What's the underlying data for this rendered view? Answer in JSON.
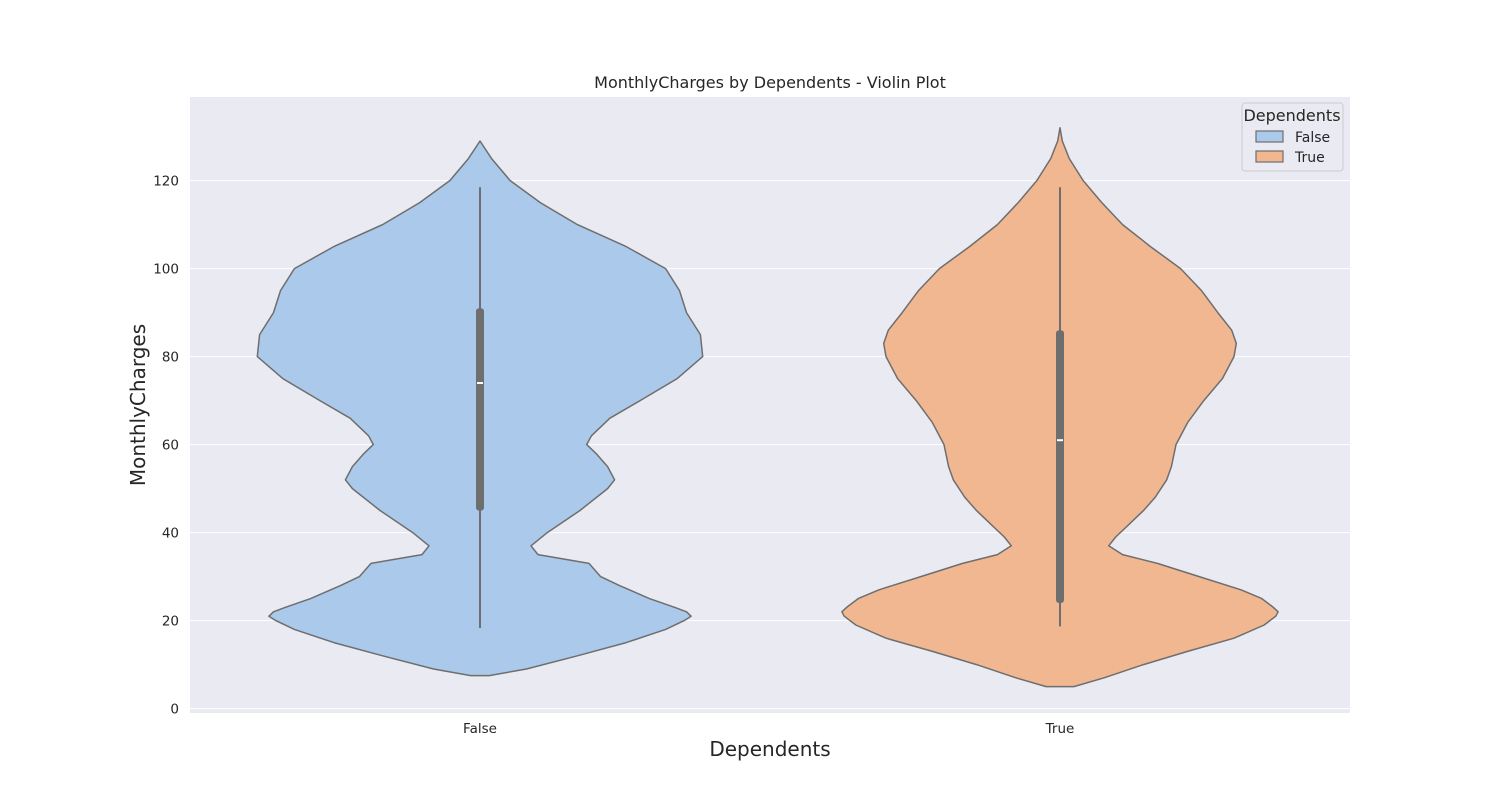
{
  "chart_data": {
    "type": "violin",
    "title": "MonthlyCharges by Dependents - Violin Plot",
    "xlabel": "Dependents",
    "ylabel": "MonthlyCharges",
    "ylim": [
      -1,
      139
    ],
    "yticks": [
      0,
      20,
      40,
      60,
      80,
      100,
      120
    ],
    "grid": true,
    "legend": {
      "title": "Dependents",
      "position": "top-right"
    },
    "categories": [
      "False",
      "True"
    ],
    "series": [
      {
        "name": "False",
        "color": "#abc9ea",
        "box": {
          "min": 18.3,
          "q1": 45,
          "median": 74,
          "q3": 91,
          "max": 118.5
        },
        "extent": [
          7.5,
          129
        ],
        "density": [
          [
            7.5,
            0.04
          ],
          [
            9,
            0.2
          ],
          [
            12,
            0.42
          ],
          [
            15,
            0.63
          ],
          [
            18,
            0.8
          ],
          [
            20,
            0.88
          ],
          [
            21,
            0.91
          ],
          [
            22,
            0.89
          ],
          [
            23,
            0.84
          ],
          [
            25,
            0.73
          ],
          [
            28,
            0.6
          ],
          [
            30,
            0.52
          ],
          [
            33,
            0.47
          ],
          [
            35,
            0.25
          ],
          [
            37,
            0.22
          ],
          [
            40,
            0.29
          ],
          [
            45,
            0.43
          ],
          [
            50,
            0.55
          ],
          [
            52,
            0.58
          ],
          [
            55,
            0.55
          ],
          [
            58,
            0.5
          ],
          [
            60,
            0.46
          ],
          [
            62,
            0.48
          ],
          [
            66,
            0.56
          ],
          [
            70,
            0.69
          ],
          [
            75,
            0.85
          ],
          [
            80,
            0.96
          ],
          [
            85,
            0.95
          ],
          [
            90,
            0.89
          ],
          [
            95,
            0.86
          ],
          [
            100,
            0.8
          ],
          [
            105,
            0.63
          ],
          [
            110,
            0.42
          ],
          [
            115,
            0.26
          ],
          [
            120,
            0.13
          ],
          [
            125,
            0.05
          ],
          [
            129,
            0.0
          ]
        ]
      },
      {
        "name": "True",
        "color": "#f1b790",
        "box": {
          "min": 18.7,
          "q1": 24,
          "median": 61,
          "q3": 86,
          "max": 118.5
        },
        "extent": [
          5,
          132
        ],
        "density": [
          [
            5,
            0.06
          ],
          [
            7,
            0.19
          ],
          [
            10,
            0.36
          ],
          [
            13,
            0.55
          ],
          [
            16,
            0.75
          ],
          [
            19,
            0.88
          ],
          [
            21,
            0.93
          ],
          [
            22,
            0.94
          ],
          [
            23,
            0.92
          ],
          [
            25,
            0.87
          ],
          [
            27,
            0.78
          ],
          [
            30,
            0.6
          ],
          [
            33,
            0.42
          ],
          [
            35,
            0.27
          ],
          [
            37,
            0.21
          ],
          [
            39,
            0.24
          ],
          [
            42,
            0.3
          ],
          [
            45,
            0.36
          ],
          [
            48,
            0.41
          ],
          [
            52,
            0.46
          ],
          [
            55,
            0.48
          ],
          [
            60,
            0.5
          ],
          [
            65,
            0.55
          ],
          [
            70,
            0.62
          ],
          [
            75,
            0.7
          ],
          [
            80,
            0.75
          ],
          [
            83,
            0.76
          ],
          [
            86,
            0.74
          ],
          [
            90,
            0.68
          ],
          [
            95,
            0.61
          ],
          [
            100,
            0.52
          ],
          [
            105,
            0.39
          ],
          [
            110,
            0.27
          ],
          [
            115,
            0.18
          ],
          [
            120,
            0.1
          ],
          [
            125,
            0.04
          ],
          [
            129,
            0.01
          ],
          [
            132,
            0.0
          ]
        ]
      }
    ]
  }
}
